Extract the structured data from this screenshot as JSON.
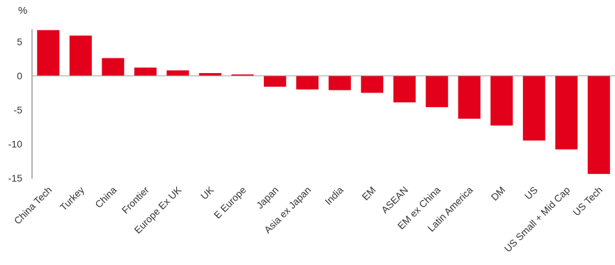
{
  "chart_data": {
    "type": "bar",
    "unit_label": "%",
    "title": "",
    "xlabel": "",
    "ylabel": "%",
    "ylim": [
      -15,
      7.5
    ],
    "yticks": [
      5,
      0,
      -5,
      -10,
      -15
    ],
    "ytick_labels": [
      "5",
      "0",
      "-5",
      "-10",
      "-15"
    ],
    "grid": false,
    "bar_color": "#e2001a",
    "categories": [
      "China Tech",
      "Turkey",
      "China",
      "Frontier",
      "Europe Ex UK",
      "UK",
      "E Europe",
      "Japan",
      "Asia ex Japan",
      "India",
      "EM",
      "ASEAN",
      "EM ex China",
      "Latin America",
      "DM",
      "US",
      "US Small + Mid Cap",
      "US Tech"
    ],
    "values": [
      6.7,
      5.9,
      2.6,
      1.2,
      0.8,
      0.4,
      0.2,
      -1.6,
      -2.0,
      -2.1,
      -2.5,
      -3.9,
      -4.6,
      -6.3,
      -7.3,
      -9.5,
      -10.8,
      -14.4
    ]
  }
}
